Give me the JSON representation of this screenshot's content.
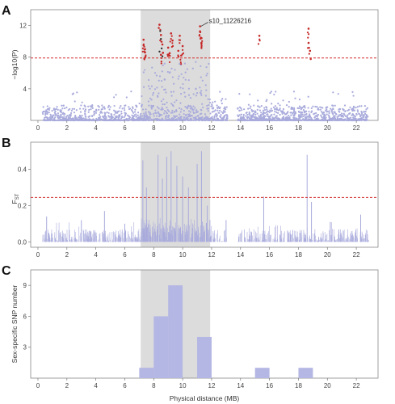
{
  "chart_data": [
    {
      "panel": "A",
      "type": "scatter",
      "ylabel": "−log10(P)",
      "xticks": [
        0,
        2,
        4,
        6,
        8,
        10,
        12,
        14,
        16,
        18,
        20,
        22
      ],
      "yticks": [
        4,
        8,
        12
      ],
      "xlim": [
        -0.5,
        23.5
      ],
      "ylim": [
        0,
        14
      ],
      "threshold": 7.9,
      "shaded_region": [
        7.1,
        11.9
      ],
      "annotation": {
        "text": "s10_11226216",
        "x": 11.2,
        "y": 11.9
      },
      "highlight_points": [
        {
          "x": 7.3,
          "y": 9.5
        },
        {
          "x": 7.3,
          "y": 10.2
        },
        {
          "x": 7.4,
          "y": 8.6
        },
        {
          "x": 7.4,
          "y": 9.0
        },
        {
          "x": 8.4,
          "y": 12.1
        },
        {
          "x": 8.5,
          "y": 10.8
        },
        {
          "x": 8.5,
          "y": 8.3
        },
        {
          "x": 8.6,
          "y": 9.6
        },
        {
          "x": 9.0,
          "y": 9.2
        },
        {
          "x": 9.1,
          "y": 8.5
        },
        {
          "x": 9.2,
          "y": 11.0
        },
        {
          "x": 9.3,
          "y": 10.1
        },
        {
          "x": 9.7,
          "y": 8.8
        },
        {
          "x": 9.8,
          "y": 10.7
        },
        {
          "x": 9.9,
          "y": 8.2
        },
        {
          "x": 10.0,
          "y": 9.4
        },
        {
          "x": 11.2,
          "y": 11.9
        },
        {
          "x": 11.2,
          "y": 11.2
        },
        {
          "x": 11.3,
          "y": 10.4
        },
        {
          "x": 11.3,
          "y": 9.8
        },
        {
          "x": 15.3,
          "y": 10.7
        },
        {
          "x": 18.7,
          "y": 11.6
        },
        {
          "x": 18.7,
          "y": 9.8
        },
        {
          "x": 18.8,
          "y": 8.8
        }
      ],
      "black_points": [
        {
          "x": 8.45,
          "y": 11.3
        },
        {
          "x": 8.5,
          "y": 10.3
        },
        {
          "x": 8.55,
          "y": 9.1
        },
        {
          "x": 8.4,
          "y": 8.7
        },
        {
          "x": 8.6,
          "y": 8.1
        }
      ]
    },
    {
      "panel": "B",
      "type": "line",
      "ylabel": "FST",
      "xticks": [
        0,
        2,
        4,
        6,
        8,
        10,
        12,
        14,
        16,
        18,
        20,
        22
      ],
      "yticks": [
        0.0,
        0.2,
        0.4
      ],
      "ytick_labels": [
        "0.0",
        "0.2",
        "0.4"
      ],
      "xlim": [
        -0.5,
        23.5
      ],
      "ylim": [
        -0.03,
        0.55
      ],
      "threshold": 0.245,
      "shaded_region": [
        7.1,
        11.9
      ],
      "peaks": [
        {
          "x": 7.25,
          "y": 0.45
        },
        {
          "x": 7.5,
          "y": 0.3
        },
        {
          "x": 8.3,
          "y": 0.48
        },
        {
          "x": 8.6,
          "y": 0.35
        },
        {
          "x": 8.9,
          "y": 0.47
        },
        {
          "x": 9.2,
          "y": 0.5
        },
        {
          "x": 9.6,
          "y": 0.42
        },
        {
          "x": 10.0,
          "y": 0.36
        },
        {
          "x": 10.4,
          "y": 0.3
        },
        {
          "x": 11.0,
          "y": 0.43
        },
        {
          "x": 11.3,
          "y": 0.5
        },
        {
          "x": 11.7,
          "y": 0.2
        },
        {
          "x": 15.6,
          "y": 0.25
        },
        {
          "x": 18.6,
          "y": 0.48
        },
        {
          "x": 18.9,
          "y": 0.22
        },
        {
          "x": 0.6,
          "y": 0.14
        },
        {
          "x": 3.0,
          "y": 0.12
        },
        {
          "x": 4.6,
          "y": 0.17
        },
        {
          "x": 6.0,
          "y": 0.1
        },
        {
          "x": 13.0,
          "y": 0.12
        },
        {
          "x": 20.2,
          "y": 0.11
        },
        {
          "x": 22.3,
          "y": 0.15
        }
      ]
    },
    {
      "panel": "C",
      "type": "bar",
      "xlabel": "Physical distance (MB)",
      "ylabel": "Sex-specific SNP number",
      "xticks": [
        0,
        2,
        4,
        6,
        8,
        10,
        12,
        14,
        16,
        18,
        20,
        22
      ],
      "yticks": [
        3,
        6,
        9
      ],
      "xlim": [
        -0.5,
        23.5
      ],
      "ylim": [
        0,
        10.5
      ],
      "shaded_region": [
        7.1,
        11.9
      ],
      "bin_width": 1,
      "bins": [
        {
          "x": 7.5,
          "value": 1
        },
        {
          "x": 8.5,
          "value": 6
        },
        {
          "x": 9.5,
          "value": 9
        },
        {
          "x": 11.5,
          "value": 4
        },
        {
          "x": 15.5,
          "value": 1
        },
        {
          "x": 18.5,
          "value": 1
        }
      ]
    }
  ],
  "colors": {
    "points": "#a9abdc",
    "highlight": "#c62828",
    "black": "#333333",
    "threshold": "#d32f2f",
    "shade": "#dcdcdc",
    "bar": "#b4b6e4",
    "axis": "#777777"
  }
}
